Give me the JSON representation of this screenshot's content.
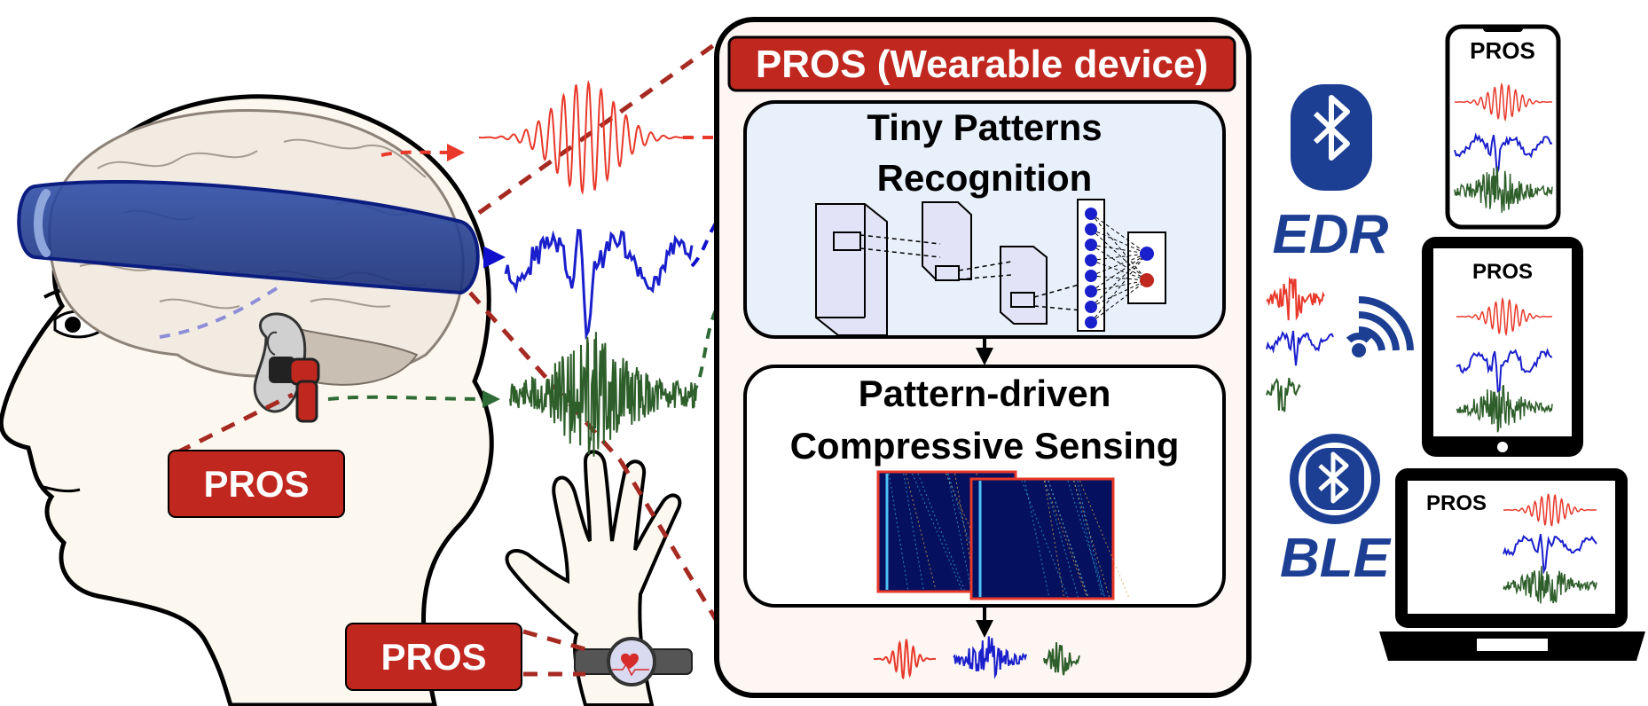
{
  "device": {
    "title": "PROS (Wearable device)",
    "module1": {
      "line1": "Tiny Patterns",
      "line2": "Recognition"
    },
    "module2": {
      "line1": "Pattern-driven",
      "line2": "Compressive Sensing"
    }
  },
  "labels": {
    "ear": "PROS",
    "wrist": "PROS",
    "phone": "PROS",
    "tablet": "PROS",
    "laptop": "PROS"
  },
  "links": {
    "edr": "EDR",
    "ble": "BLE"
  },
  "icons": {
    "head": "head-profile-icon",
    "brain": "brain-icon",
    "headband": "headband-icon",
    "earbud": "earbud-icon",
    "hand": "hand-icon",
    "watch": "smartwatch-icon",
    "bluetooth": "bluetooth-icon",
    "wifi": "wireless-signal-icon",
    "phone": "smartphone-icon",
    "tablet": "tablet-icon",
    "laptop": "laptop-icon",
    "cnn": "neural-network-icon",
    "heatmap": "matrix-heatmap-icon"
  },
  "colors": {
    "red": "#e8392b",
    "darkred": "#c0271f",
    "blue": "#1a1fcc",
    "green": "#2e5e2a",
    "navy": "#1c3f94",
    "dashred": "#a62a22",
    "dashblue": "#1010cc",
    "dashgreen": "#2f6b35",
    "panel": "#fdf6f3",
    "module": "#e8f0fb"
  }
}
